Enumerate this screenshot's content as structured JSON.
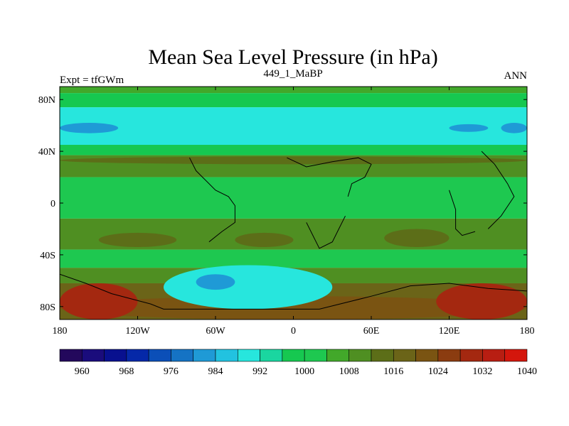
{
  "chart_data": {
    "type": "heatmap",
    "title": "Mean Sea Level Pressure (in hPa)",
    "left_string": "Expt = tfGWm",
    "center_string": "449_1_MaBP",
    "right_string": "ANN",
    "x": {
      "range": [
        -180,
        180
      ],
      "ticks": [
        {
          "value": -180,
          "label": "180"
        },
        {
          "value": -120,
          "label": "120W"
        },
        {
          "value": -60,
          "label": "60W"
        },
        {
          "value": 0,
          "label": "0"
        },
        {
          "value": 60,
          "label": "60E"
        },
        {
          "value": 120,
          "label": "120E"
        },
        {
          "value": 180,
          "label": "180"
        }
      ]
    },
    "y": {
      "range": [
        -90,
        90
      ],
      "ticks": [
        {
          "value": 80,
          "label": "80N"
        },
        {
          "value": 40,
          "label": "40N"
        },
        {
          "value": 0,
          "label": "0"
        },
        {
          "value": -40,
          "label": "40S"
        },
        {
          "value": -80,
          "label": "80S"
        }
      ]
    },
    "colorbar": {
      "colors": [
        "#23085c",
        "#1a0c7c",
        "#08108f",
        "#0528a8",
        "#0b4fb8",
        "#1573c4",
        "#1f9ad6",
        "#22c2e0",
        "#27e6dd",
        "#1ad6a0",
        "#16c850",
        "#1ec850",
        "#42a82a",
        "#4f8f22",
        "#5c6e18",
        "#6b6418",
        "#7a5412",
        "#8b3c10",
        "#a42810",
        "#b81e12",
        "#d4160c"
      ],
      "labels": [
        "960",
        "968",
        "976",
        "984",
        "992",
        "1000",
        "1008",
        "1016",
        "1024",
        "1032",
        "1040"
      ]
    },
    "bands": [
      {
        "from_lat": 90,
        "to_lat": 85,
        "level": 1012,
        "color": "#42a82a"
      },
      {
        "from_lat": 85,
        "to_lat": 74,
        "level": 1004,
        "color": "#16c850"
      },
      {
        "from_lat": 74,
        "to_lat": 45,
        "level": 996,
        "color": "#27e6dd"
      },
      {
        "from_lat": 45,
        "to_lat": 37,
        "level": 1004,
        "color": "#16c850"
      },
      {
        "from_lat": 37,
        "to_lat": 20,
        "level": 1016,
        "color": "#4f8f22"
      },
      {
        "from_lat": 20,
        "to_lat": -12,
        "level": 1008,
        "color": "#1ec850"
      },
      {
        "from_lat": -12,
        "to_lat": -36,
        "level": 1016,
        "color": "#4f8f22"
      },
      {
        "from_lat": -36,
        "to_lat": -50,
        "level": 1008,
        "color": "#1ec850"
      },
      {
        "from_lat": -50,
        "to_lat": -62,
        "level": 1016,
        "color": "#4f8f22"
      },
      {
        "from_lat": -62,
        "to_lat": -90,
        "level": 1024,
        "color": "#6b6418"
      }
    ],
    "features": [
      {
        "lon_min": -180,
        "lon_max": 180,
        "lat_min": 30,
        "lat_max": 36,
        "level": 1020,
        "color": "#5c6e18"
      },
      {
        "lon_min": -150,
        "lon_max": -90,
        "lat_min": -23,
        "lat_max": -34,
        "level": 1020,
        "color": "#5c6e18"
      },
      {
        "lon_min": -45,
        "lon_max": 0,
        "lat_min": -23,
        "lat_max": -34,
        "level": 1020,
        "color": "#5c6e18"
      },
      {
        "lon_min": 70,
        "lon_max": 120,
        "lat_min": -20,
        "lat_max": -34,
        "level": 1020,
        "color": "#5c6e18"
      },
      {
        "lon_min": -180,
        "lon_max": 180,
        "lat_min": -72,
        "lat_max": -90,
        "level": 1028,
        "color": "#7a5412"
      },
      {
        "lon_min": -180,
        "lon_max": -120,
        "lat_min": -62,
        "lat_max": -90,
        "level": 1032,
        "color": "#a42810"
      },
      {
        "lon_min": 110,
        "lon_max": 180,
        "lat_min": -62,
        "lat_max": -90,
        "level": 1032,
        "color": "#a42810"
      },
      {
        "lon_min": -100,
        "lon_max": 30,
        "lat_min": -48,
        "lat_max": -82,
        "level": 1000,
        "color": "#27e6dd"
      },
      {
        "lon_min": -75,
        "lon_max": -45,
        "lat_min": -55,
        "lat_max": -67,
        "level": 992,
        "color": "#1f9ad6"
      },
      {
        "lon_min": -180,
        "lon_max": -135,
        "lat_min": 54,
        "lat_max": 62,
        "level": 992,
        "color": "#1f9ad6"
      },
      {
        "lon_min": 120,
        "lon_max": 150,
        "lat_min": 55,
        "lat_max": 61,
        "level": 992,
        "color": "#1f9ad6"
      },
      {
        "lon_min": 160,
        "lon_max": 180,
        "lat_min": 54,
        "lat_max": 62,
        "level": 992,
        "color": "#1f9ad6"
      }
    ],
    "coastlines": [
      [
        [
          -180,
          -55
        ],
        [
          -160,
          -62
        ],
        [
          -140,
          -70
        ],
        [
          -110,
          -78
        ],
        [
          -100,
          -82
        ],
        [
          -50,
          -82
        ],
        [
          -20,
          -82
        ],
        [
          20,
          -82
        ],
        [
          60,
          -72
        ],
        [
          90,
          -64
        ],
        [
          120,
          -62
        ],
        [
          150,
          -66
        ],
        [
          180,
          -68
        ]
      ],
      [
        [
          -80,
          35
        ],
        [
          -75,
          25
        ],
        [
          -70,
          20
        ],
        [
          -60,
          10
        ],
        [
          -50,
          5
        ],
        [
          -45,
          -2
        ],
        [
          -45,
          -15
        ],
        [
          -55,
          -22
        ],
        [
          -65,
          -30
        ]
      ],
      [
        [
          -5,
          35
        ],
        [
          10,
          28
        ],
        [
          30,
          32
        ],
        [
          50,
          35
        ],
        [
          60,
          30
        ],
        [
          55,
          20
        ],
        [
          45,
          15
        ],
        [
          42,
          5
        ]
      ],
      [
        [
          40,
          -10
        ],
        [
          35,
          -20
        ],
        [
          30,
          -30
        ],
        [
          20,
          -35
        ],
        [
          15,
          -25
        ],
        [
          10,
          -15
        ]
      ],
      [
        [
          120,
          10
        ],
        [
          125,
          -5
        ],
        [
          125,
          -20
        ],
        [
          130,
          -25
        ],
        [
          140,
          -22
        ]
      ],
      [
        [
          145,
          40
        ],
        [
          155,
          30
        ],
        [
          165,
          15
        ],
        [
          170,
          5
        ],
        [
          160,
          -10
        ],
        [
          150,
          -20
        ]
      ]
    ]
  }
}
